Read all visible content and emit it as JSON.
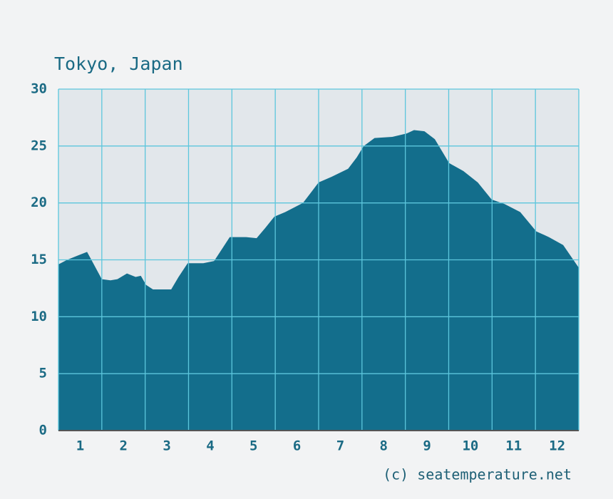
{
  "chart_data": {
    "type": "area",
    "title": "Tokyo, Japan",
    "footer": "(c) seatemperature.net",
    "x": [
      0,
      0.2,
      0.46,
      0.66,
      1.0,
      1.2,
      1.36,
      1.58,
      1.78,
      1.9,
      2.02,
      2.18,
      2.6,
      2.77,
      2.98,
      3.34,
      3.59,
      3.78,
      3.95,
      4.33,
      4.57,
      4.77,
      4.98,
      5.23,
      5.64,
      5.84,
      6.0,
      6.3,
      6.68,
      6.88,
      7.04,
      7.29,
      7.7,
      8.03,
      8.2,
      8.44,
      8.68,
      9.01,
      9.34,
      9.67,
      9.99,
      10.29,
      10.65,
      11.02,
      11.31,
      11.64,
      12.0
    ],
    "values": [
      14.6,
      15.0,
      15.4,
      15.7,
      13.3,
      13.2,
      13.3,
      13.8,
      13.5,
      13.6,
      12.8,
      12.4,
      12.4,
      13.5,
      14.7,
      14.7,
      14.9,
      16.0,
      17.0,
      17.0,
      16.9,
      17.8,
      18.8,
      19.2,
      20.0,
      21.0,
      21.8,
      22.3,
      23.0,
      24.0,
      25.0,
      25.7,
      25.8,
      26.1,
      26.4,
      26.3,
      25.6,
      23.5,
      22.8,
      21.8,
      20.3,
      19.9,
      19.2,
      17.5,
      17.0,
      16.3,
      14.3
    ],
    "color": "#136e8c",
    "xlim": [
      0,
      12
    ],
    "xticks": [
      {
        "value": 0.5,
        "label": "1"
      },
      {
        "value": 1.5,
        "label": "2"
      },
      {
        "value": 2.5,
        "label": "3"
      },
      {
        "value": 3.5,
        "label": "4"
      },
      {
        "value": 4.5,
        "label": "5"
      },
      {
        "value": 5.5,
        "label": "6"
      },
      {
        "value": 6.5,
        "label": "7"
      },
      {
        "value": 7.5,
        "label": "8"
      },
      {
        "value": 8.5,
        "label": "9"
      },
      {
        "value": 9.5,
        "label": "10"
      },
      {
        "value": 10.5,
        "label": "11"
      },
      {
        "value": 11.5,
        "label": "12"
      }
    ],
    "ylim": [
      0,
      30
    ],
    "yticks": [
      0,
      5,
      10,
      15,
      20,
      25,
      30
    ],
    "grid": true
  }
}
